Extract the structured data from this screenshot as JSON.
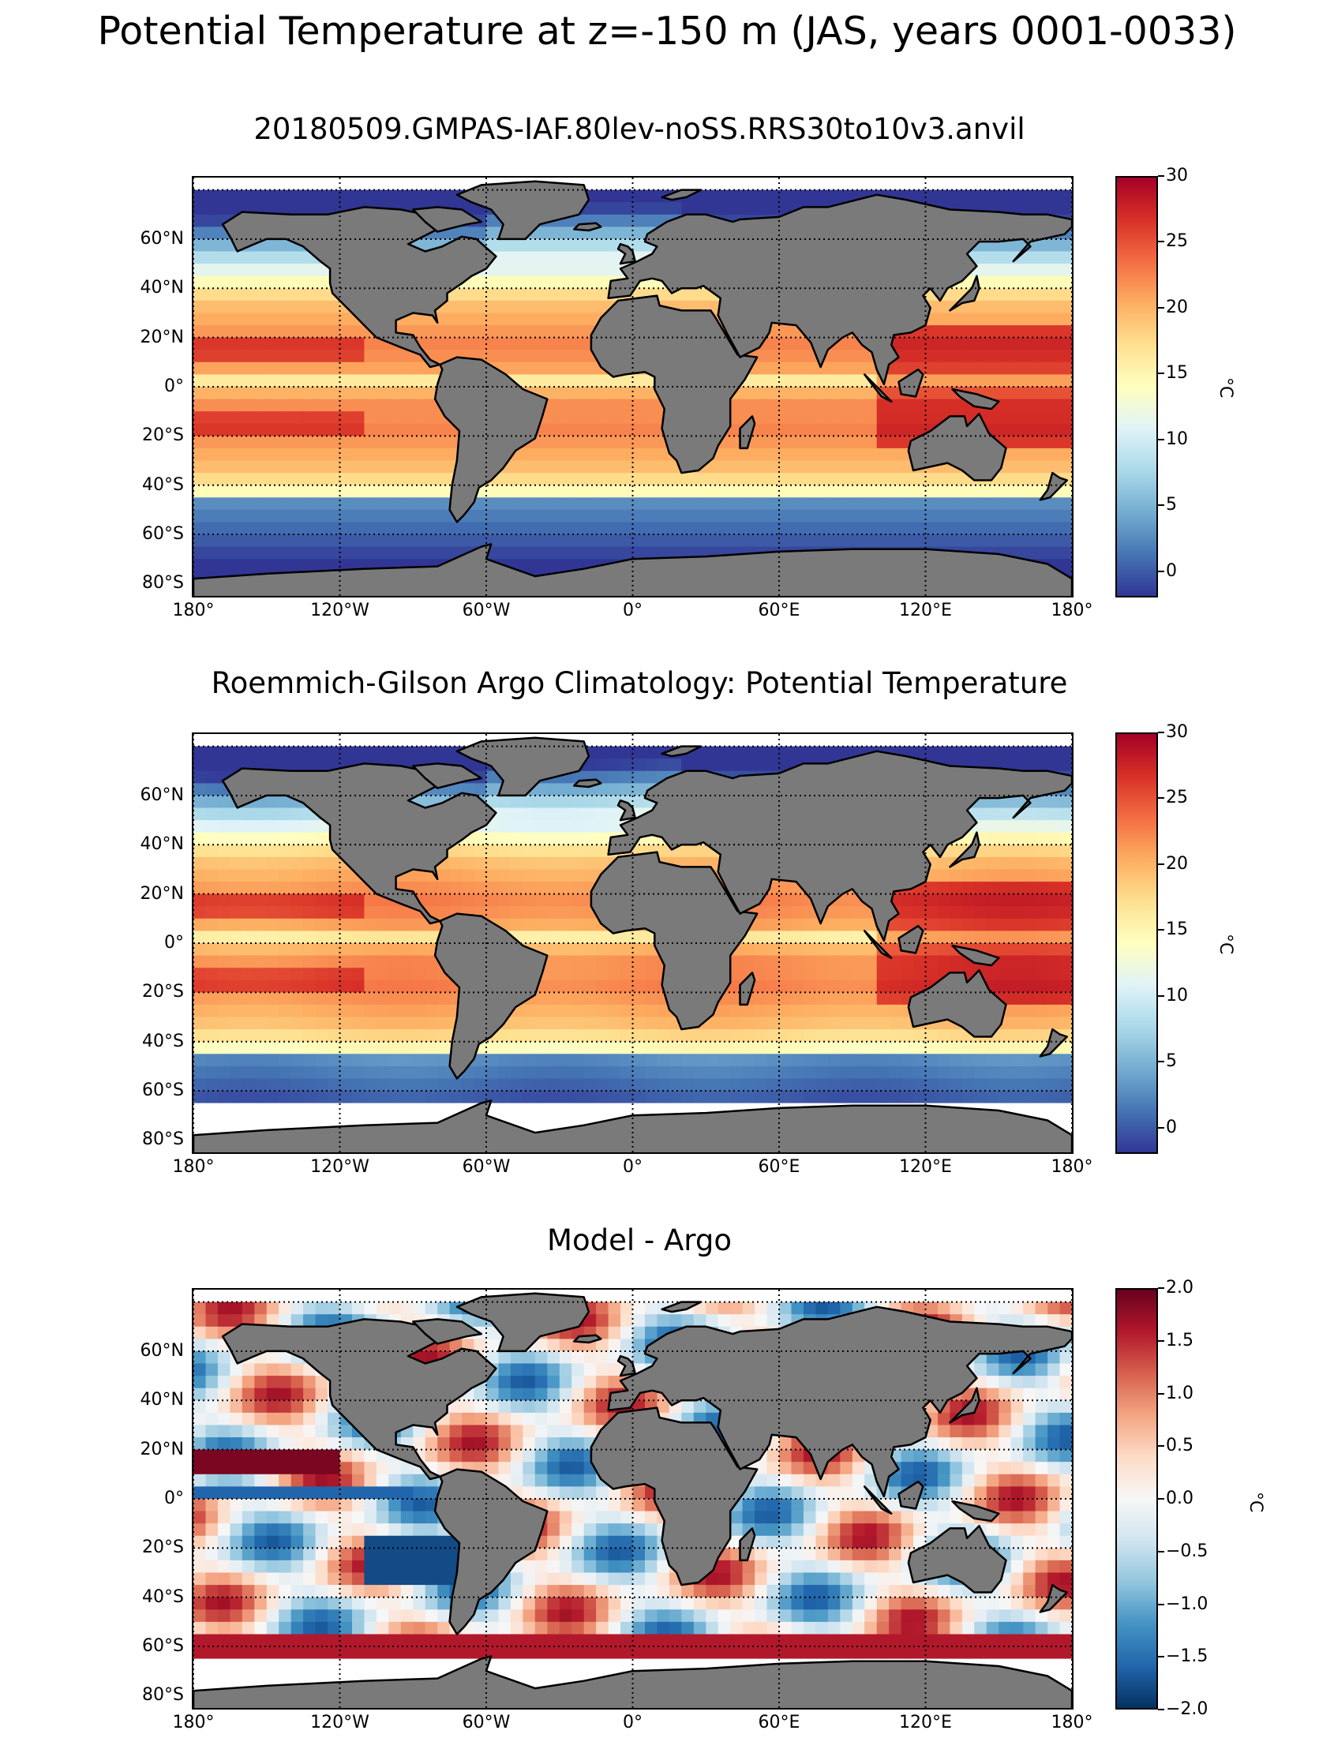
{
  "figure": {
    "suptitle": "Potential Temperature at z=-150 m (JAS, years 0001-0033)"
  },
  "panels": [
    {
      "title": "20180509.GMPAS-IAF.80lev-noSS.RRS30to10v3.anvil",
      "field": "model potential temperature",
      "colormap": "RdYlBu_r",
      "south_cutoff_lat": -78,
      "colorbar": {
        "unit": "°C",
        "min": -2,
        "max": 30,
        "ticks": [
          "0",
          "5",
          "10",
          "15",
          "20",
          "25",
          "30"
        ]
      }
    },
    {
      "title": "Roemmich-Gilson Argo Climatology: Potential Temperature",
      "field": "observed potential temperature",
      "colormap": "RdYlBu_r",
      "south_cutoff_lat": -65,
      "colorbar": {
        "unit": "°C",
        "min": -2,
        "max": 30,
        "ticks": [
          "0",
          "5",
          "10",
          "15",
          "20",
          "25",
          "30"
        ]
      }
    },
    {
      "title": "Model - Argo",
      "field": "difference",
      "colormap": "RdBu_r",
      "south_cutoff_lat": -65,
      "colorbar": {
        "unit": "°C",
        "min": -2,
        "max": 2,
        "ticks": [
          "−2.0",
          "−1.5",
          "−1.0",
          "−0.5",
          "0.0",
          "0.5",
          "1.0",
          "1.5",
          "2.0"
        ]
      }
    }
  ],
  "axes": {
    "lat_labels": [
      "60°N",
      "40°N",
      "20°N",
      "0°",
      "20°S",
      "40°S",
      "60°S",
      "80°S"
    ],
    "lon_labels": [
      "180°",
      "120°W",
      "60°W",
      "0°",
      "60°E",
      "120°E",
      "180°"
    ],
    "lat_range": [
      -85,
      85
    ],
    "lon_range": [
      -180,
      180
    ]
  },
  "colors": {
    "land": "#7a7a7a",
    "coastline": "#000000",
    "gridline": "#000000",
    "missing": "#ffffff"
  }
}
